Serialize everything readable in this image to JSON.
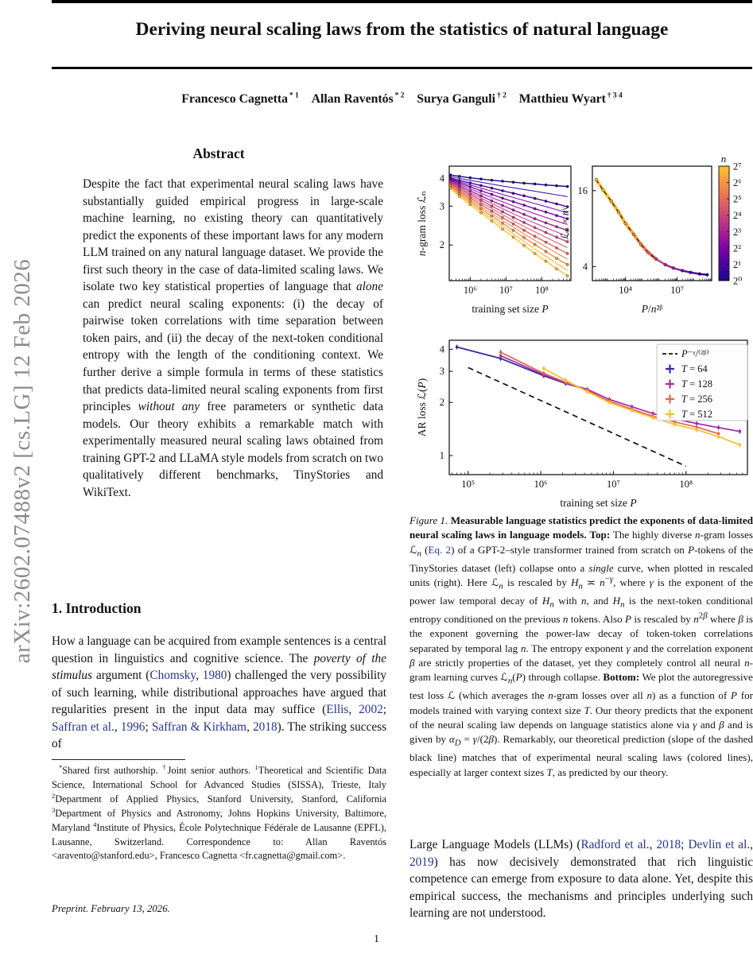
{
  "watermark": {
    "text": "arXiv:2602.07488v2  [cs.LG]  12 Feb 2026"
  },
  "header": {
    "title": "Deriving neural scaling laws from the statistics of natural language",
    "authors": [
      {
        "name": "Francesco Cagnetta",
        "marks": "* 1"
      },
      {
        "name": "Allan Raventós",
        "marks": "* 2"
      },
      {
        "name": "Surya Ganguli",
        "marks": "† 2"
      },
      {
        "name": "Matthieu Wyart",
        "marks": "† 3 4"
      }
    ],
    "authors_html": "Francesco Cagnetta<sup>&thinsp;* 1</sup>&emsp;Allan Raventós<sup>&thinsp;* 2</sup>&emsp;Surya Ganguli<sup>&thinsp;† 2</sup>&emsp;Matthieu Wyart<sup>&thinsp;† 3 4</sup>"
  },
  "abstract": {
    "heading": "Abstract",
    "text_html": "Despite the fact that experimental neural scaling laws have substantially guided empirical progress in large-scale machine learning, no existing theory can quantitatively predict the exponents of these important laws for any modern LLM trained on any natural language dataset. We provide the first such theory in the case of data-limited scaling laws. We isolate two key statistical properties of language that <i>alone</i> can predict neural scaling exponents: (i) the decay of pairwise token correlations with time separation between token pairs, and (ii) the decay of the next-token conditional entropy with the length of the conditioning context. We further derive a simple formula in terms of these statistics that predicts data-limited neural scaling exponents from first principles <i>without any</i> free parameters or synthetic data models. Our theory exhibits a remarkable match with experimentally measured neural scaling laws obtained from training GPT-2 and LLaMA style models from scratch on two qualitatively different benchmarks, TinyStories and WikiText."
  },
  "introduction": {
    "heading": "1. Introduction",
    "paragraph_html": "How a language can be acquired from example sentences is a central question in linguistics and cognitive science. The <i>poverty of the stimulus</i> argument (<span class='cite'>Chomsky</span>, <span class='cite'>1980</span>) challenged the very possibility of such learning, while distributional approaches have argued that regularities present in the input data may suffice (<span class='cite'>Ellis</span>, <span class='cite'>2002</span>; <span class='cite'>Saffran et al.</span>, <span class='cite'>1996</span>; <span class='cite'>Saffran &amp; Kirkham</span>, <span class='cite'>2018</span>). The striking success of"
  },
  "footnote": {
    "text_html": "<sup>*</sup>Shared first authorship. <sup>†</sup>Joint senior authors. <sup>1</sup>Theoretical and Scientific Data Science, International School for Advanced Studies (SISSA), Trieste, Italy <sup>2</sup>Department of Applied Physics, Stanford University, Stanford, California <sup>3</sup>Department of Physics and Astronomy, Johns Hopkins University, Baltimore, Maryland <sup>4</sup>Institute of Physics, École Polytechnique Fédérale de Lausanne (EPFL), Lausanne, Switzerland. Correspondence to: Allan Raventós &lt;aravento@stanford.edu&gt;, Francesco Cagnetta &lt;fr.cagnetta@gmail.com&gt;.",
    "preprint_line": "Preprint. February 13, 2026."
  },
  "figure": {
    "caption_html": "<i>Figure 1.</i> <b>Measurable language statistics predict the exponents of data-limited neural scaling laws in language models.</b> <b>Top:</b> The highly diverse <i>n</i>-gram losses ℒ<sub><i>n</i></sub> (<span class='cite'>Eq. 2</span>) of a GPT-2–style transformer trained from scratch on <i>P</i>-tokens of the TinyStories dataset (left) collapse onto a <i>single</i> curve, when plotted in rescaled units (right). Here ℒ<sub><i>n</i></sub> is rescaled by <i>H<sub>n</sub></i> ≍ <i>n</i><sup>−<i>γ</i></sup>, where <i>γ</i> is the exponent of the power law temporal decay of <i>H<sub>n</sub></i> with <i>n</i>, and <i>H<sub>n</sub></i> is the next-token conditional entropy conditioned on the previous <i>n</i> tokens. Also <i>P</i> is rescaled by <i>n</i><sup>2<i>β</i></sup> where <i>β</i> is the exponent governing the power-law decay of token-token correlations separated by temporal lag <i>n</i>. The entropy exponent <i>γ</i> and the correlation exponent <i>β</i> are strictly properties of the dataset, yet they completely control all neural <i>n</i>-gram learning curves ℒ<sub><i>n</i></sub>(<i>P</i>) through collapse. <b>Bottom:</b> We plot the autoregressive test loss ℒ (which averages the <i>n</i>-gram losses over all <i>n</i>) as a function of <i>P</i> for models trained with varying context size <i>T</i>. Our theory predicts that the exponent of the neural scaling law depends on language statistics alone via <i>γ</i> and <i>β</i> and is given by <i>α<sub>D</sub></i> = <i>γ</i>/(2<i>β</i>). Remarkably, our theoretical prediction (slope of the dashed black line) matches that of experimental neural scaling laws (colored lines), especially at larger context sizes <i>T</i>, as predicted by our theory."
  },
  "body_after_figure": {
    "paragraph_html": "Large Language Models (LLMs) (<span class='cite'>Radford et al.</span>, <span class='cite'>2018</span>; <span class='cite'>Devlin et al.</span>, <span class='cite'>2019</span>) has now decisively demonstrated that rich linguistic competence can emerge from exposure to data alone. Yet, despite this empirical success, the mechanisms and principles underlying such learning are not understood.",
    "page_number": "1"
  },
  "chart_data": [
    {
      "id": "ngram-loss",
      "type": "line",
      "xlabel": "training set size P",
      "ylabel": "n-gram loss ℒₙ",
      "xscale": "log",
      "yscale": "log",
      "xlim": [
        260000.0,
        650000000.0
      ],
      "ylim": [
        1.38,
        4.55
      ],
      "xticks": [
        {
          "v": 1000000.0,
          "label": "10⁶"
        },
        {
          "v": 10000000.0,
          "label": "10⁷"
        },
        {
          "v": 100000000.0,
          "label": "10⁸"
        }
      ],
      "yticks": [
        {
          "v": 2,
          "label": "2"
        },
        {
          "v": 3,
          "label": "3"
        },
        {
          "v": 4,
          "label": "4"
        }
      ],
      "P": [
        280000.0,
        500000.0,
        1000000.0,
        2000000.0,
        4000000.0,
        8000000.0,
        16000000.0,
        32000000.0,
        64000000.0,
        130000000.0,
        260000000.0,
        520000000.0
      ],
      "series": [
        {
          "name": "n=2⁰",
          "color": "#16078f",
          "values": [
            4.15,
            4.09,
            4.03,
            3.98,
            3.93,
            3.89,
            3.85,
            3.81,
            3.78,
            3.74,
            3.71,
            3.68
          ]
        },
        {
          "name": "n=2¹",
          "color": "#4c02a1",
          "values": [
            4.02,
            3.92,
            3.82,
            3.72,
            3.62,
            3.52,
            3.43,
            3.34,
            3.25,
            3.16,
            3.07,
            2.98
          ]
        },
        {
          "name": "n=2²",
          "color": "#7e03a8",
          "values": [
            3.97,
            3.82,
            3.67,
            3.52,
            3.39,
            3.26,
            3.14,
            3.03,
            2.92,
            2.82,
            2.72,
            2.63
          ]
        },
        {
          "name": "n=2³",
          "color": "#a82296",
          "values": [
            3.91,
            3.71,
            3.52,
            3.34,
            3.17,
            3.02,
            2.88,
            2.75,
            2.63,
            2.52,
            2.42,
            2.33
          ]
        },
        {
          "name": "n=2⁴",
          "color": "#cb4679",
          "values": [
            3.84,
            3.61,
            3.39,
            3.19,
            3.0,
            2.83,
            2.67,
            2.53,
            2.4,
            2.28,
            2.17,
            2.07
          ]
        },
        {
          "name": "n=2⁵",
          "color": "#e56b5d",
          "values": [
            3.77,
            3.51,
            3.27,
            3.05,
            2.85,
            2.66,
            2.49,
            2.33,
            2.19,
            2.06,
            1.94,
            1.83
          ]
        },
        {
          "name": "n=2⁶",
          "color": "#f79342",
          "values": [
            3.7,
            3.42,
            3.16,
            2.92,
            2.71,
            2.51,
            2.33,
            2.16,
            2.01,
            1.87,
            1.74,
            1.63
          ]
        },
        {
          "name": "n=2⁷",
          "color": "#fcc22f",
          "values": [
            3.62,
            3.32,
            3.05,
            2.8,
            2.57,
            2.36,
            2.17,
            1.99,
            1.83,
            1.69,
            1.56,
            1.45
          ]
        }
      ]
    },
    {
      "id": "collapse",
      "type": "line",
      "xlabel": "P/n²ᵝ",
      "ylabel": "ℒₙ × nᵞ",
      "xscale": "log",
      "yscale": "log",
      "xlim": [
        120.0,
        1000000000.0
      ],
      "ylim": [
        3.1,
        25
      ],
      "xticks": [
        {
          "v": 10000.0,
          "label": "10⁴"
        },
        {
          "v": 10000000.0,
          "label": "10⁷"
        }
      ],
      "yticks": [
        {
          "v": 4,
          "label": "4"
        },
        {
          "v": 16,
          "label": "16"
        }
      ],
      "points": [
        {
          "x": 200.0,
          "y": 19.5,
          "c": "#fcc22f"
        },
        {
          "x": 500.0,
          "y": 16.2,
          "c": "#fcc22f"
        },
        {
          "x": 1500.0,
          "y": 13.2,
          "c": "#fbb42f"
        },
        {
          "x": 4000.0,
          "y": 10.8,
          "c": "#fbb42f"
        },
        {
          "x": 10000.0,
          "y": 8.8,
          "c": "#f9a73a"
        },
        {
          "x": 30000.0,
          "y": 7.2,
          "c": "#f79342"
        },
        {
          "x": 80000.0,
          "y": 6.0,
          "c": "#ef7e4c"
        },
        {
          "x": 200000.0,
          "y": 5.2,
          "c": "#e56b5d"
        },
        {
          "x": 600000.0,
          "y": 4.6,
          "c": "#cb4679"
        },
        {
          "x": 2000000.0,
          "y": 4.15,
          "c": "#a82296"
        },
        {
          "x": 6000000.0,
          "y": 3.9,
          "c": "#8a27a0"
        },
        {
          "x": 20000000.0,
          "y": 3.72,
          "c": "#6a0aa6"
        },
        {
          "x": 60000000.0,
          "y": 3.6,
          "c": "#4c02a1"
        },
        {
          "x": 200000000.0,
          "y": 3.5,
          "c": "#2b0a99"
        },
        {
          "x": 550000000.0,
          "y": 3.45,
          "c": "#16078f"
        }
      ],
      "dashed_overlay_until_index": 8,
      "colorbar": {
        "label": "n",
        "tick_labels": [
          "2⁷",
          "2⁶",
          "2⁵",
          "2⁴",
          "2³",
          "2²",
          "2¹",
          "2⁰"
        ],
        "colors": [
          "#fcc22f",
          "#f79342",
          "#e56b5d",
          "#cb4679",
          "#a82296",
          "#7e03a8",
          "#4c02a1",
          "#16078f"
        ]
      }
    },
    {
      "id": "ar-loss",
      "type": "line",
      "xlabel": "training set size P",
      "ylabel": "AR loss ℒ(P)",
      "xscale": "log",
      "yscale": "log",
      "xlim": [
        55000.0,
        700000000.0
      ],
      "ylim": [
        0.78,
        4.5
      ],
      "xticks": [
        {
          "v": 100000.0,
          "label": "10⁵"
        },
        {
          "v": 1000000.0,
          "label": "10⁶"
        },
        {
          "v": 10000000.0,
          "label": "10⁷"
        },
        {
          "v": 100000000.0,
          "label": "10⁸"
        }
      ],
      "yticks": [
        {
          "v": 1,
          "label": "1"
        },
        {
          "v": 2,
          "label": "2"
        },
        {
          "v": 3,
          "label": "3"
        },
        {
          "v": 4,
          "label": "4"
        }
      ],
      "dashed_line": {
        "label": "P⁻ᵞ/⁽²ᵝ⁾",
        "points": [
          [
            100000.0,
            3.15
          ],
          [
            100000000.0,
            0.87
          ]
        ]
      },
      "series": [
        {
          "name": "T = 64",
          "color": "#332a9d",
          "points": [
            [
              70000.0,
              4.12
            ],
            [
              280000.0,
              3.55
            ],
            [
              1100000.0,
              2.83
            ],
            [
              2200000.0,
              2.56
            ],
            [
              4400000.0,
              2.36
            ]
          ]
        },
        {
          "name": "T = 128",
          "color": "#a02ba5",
          "points": [
            [
              280000.0,
              3.68
            ],
            [
              1100000.0,
              2.87
            ],
            [
              2200000.0,
              2.58
            ],
            [
              4400000.0,
              2.37
            ],
            [
              8800000.0,
              2.08
            ],
            [
              18000000.0,
              1.89
            ],
            [
              35000000.0,
              1.73
            ],
            [
              70000000.0,
              1.61
            ],
            [
              140000000.0,
              1.52
            ],
            [
              280000000.0,
              1.44
            ],
            [
              550000000.0,
              1.37
            ]
          ]
        },
        {
          "name": "T = 256",
          "color": "#e2614f",
          "points": [
            [
              280000.0,
              3.85
            ],
            [
              1100000.0,
              2.92
            ],
            [
              2200000.0,
              2.6
            ],
            [
              4400000.0,
              2.33
            ],
            [
              8800000.0,
              2.03
            ],
            [
              18000000.0,
              1.83
            ],
            [
              35000000.0,
              1.67
            ],
            [
              70000000.0,
              1.55
            ],
            [
              140000000.0,
              1.45
            ],
            [
              280000000.0,
              1.33
            ]
          ]
        },
        {
          "name": "T = 512",
          "color": "#f9bf2c",
          "points": [
            [
              1100000.0,
              3.12
            ],
            [
              2200000.0,
              2.67
            ],
            [
              4400000.0,
              2.3
            ],
            [
              8800000.0,
              2.0
            ],
            [
              18000000.0,
              1.8
            ],
            [
              35000000.0,
              1.64
            ],
            [
              70000000.0,
              1.5
            ],
            [
              140000000.0,
              1.4
            ],
            [
              280000000.0,
              1.28
            ],
            [
              550000000.0,
              1.15
            ]
          ]
        }
      ],
      "legend_position": "upper right"
    }
  ]
}
